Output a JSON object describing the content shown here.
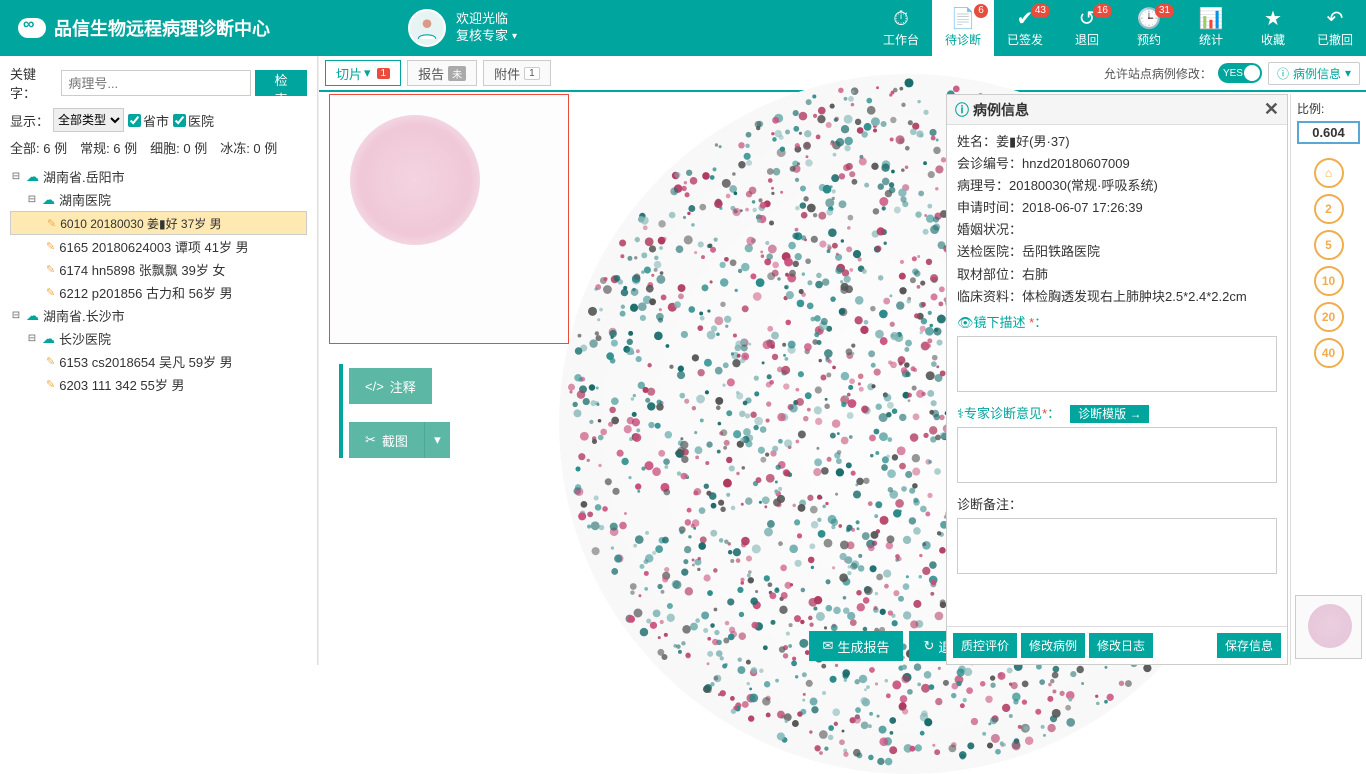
{
  "header": {
    "title": "品信生物远程病理诊断中心",
    "welcome": "欢迎光临",
    "role": "复核专家"
  },
  "nav": [
    {
      "icon": "⏱",
      "label": "工作台",
      "badge": ""
    },
    {
      "icon": "📄",
      "label": "待诊断",
      "badge": "6",
      "active": true
    },
    {
      "icon": "✔",
      "label": "已签发",
      "badge": "43"
    },
    {
      "icon": "↺",
      "label": "退回",
      "badge": "16"
    },
    {
      "icon": "🕒",
      "label": "预约",
      "badge": "31"
    },
    {
      "icon": "📊",
      "label": "统计",
      "badge": ""
    },
    {
      "icon": "★",
      "label": "收藏",
      "badge": ""
    },
    {
      "icon": "↶",
      "label": "已撤回",
      "badge": ""
    }
  ],
  "search": {
    "kw_label": "关键字：",
    "placeholder": "病理号...",
    "btn": "检索"
  },
  "filter": {
    "show_label": "显示：",
    "type": "全部类型",
    "chk1": "省市",
    "chk2": "医院"
  },
  "stats": "全部: 6 例　常规: 6 例　细胞: 0 例　冰冻: 0 例",
  "tree": [
    {
      "lvl": 0,
      "toggle": "⊟",
      "cloud": true,
      "text": "湖南省.岳阳市"
    },
    {
      "lvl": 1,
      "toggle": "⊟",
      "cloud": true,
      "text": "湖南医院"
    },
    {
      "lvl": 2,
      "pen": true,
      "text": "6010 20180030 姜▮好 37岁 男",
      "sel": true
    },
    {
      "lvl": 2,
      "pen": true,
      "text": "6165 20180624003 谭项 41岁 男"
    },
    {
      "lvl": 2,
      "pen": true,
      "text": "6174 hn5898 张飘飘 39岁 女"
    },
    {
      "lvl": 2,
      "pen": true,
      "text": "6212 p201856 古力和 56岁 男"
    },
    {
      "lvl": 0,
      "toggle": "⊟",
      "cloud": true,
      "text": "湖南省.长沙市"
    },
    {
      "lvl": 1,
      "toggle": "⊟",
      "cloud": true,
      "text": "长沙医院"
    },
    {
      "lvl": 2,
      "pen": true,
      "text": "6153 cs2018654 吴凡 59岁 男"
    },
    {
      "lvl": 2,
      "pen": true,
      "text": "6203 111 342 55岁 男"
    }
  ],
  "tabs": {
    "t1": "切片",
    "b1": "1",
    "t2": "报告",
    "b2": "未",
    "t3": "附件",
    "b3": "1",
    "allow_label": "允许站点病例修改：",
    "toggle_text": "YES",
    "info_btn": "病例信息"
  },
  "tools": {
    "annot": "注释",
    "crop": "截图"
  },
  "bottom": {
    "gen": "生成报告",
    "back": "退回"
  },
  "info": {
    "title": "病例信息",
    "rows": {
      "name_l": "姓名：",
      "name_v": "姜▮好(男·37)",
      "cons_l": "会诊编号：",
      "cons_v": "hnzd20180607009",
      "path_l": "病理号：",
      "path_v": "20180030(常规·呼吸系统)",
      "apply_l": "申请时间：",
      "apply_v": "2018-06-07 17:26:39",
      "marry_l": "婚姻状况：",
      "marry_v": "",
      "hosp_l": "送检医院：",
      "hosp_v": "岳阳铁路医院",
      "site_l": "取材部位：",
      "site_v": "右肺",
      "clin_l": "临床资料：",
      "clin_v": "体检胸透发现右上肺肿块2.5*2.4*2.2cm"
    },
    "micro_label": "镜下描述",
    "expert_label": "专家诊断意见",
    "tpl_btn": "诊断模版 →",
    "note_label": "诊断备注：",
    "foot": {
      "qc": "质控评价",
      "modcase": "修改病例",
      "modlog": "修改日志",
      "save": "保存信息"
    }
  },
  "rail": {
    "ratio_label": "比例:",
    "ratio": "0.604",
    "zooms": [
      "⌂",
      "2",
      "5",
      "10",
      "20",
      "40"
    ]
  },
  "colors": {
    "primary": "#00a59d",
    "badge": "#e74c3c",
    "orange": "#f0ad4e"
  }
}
